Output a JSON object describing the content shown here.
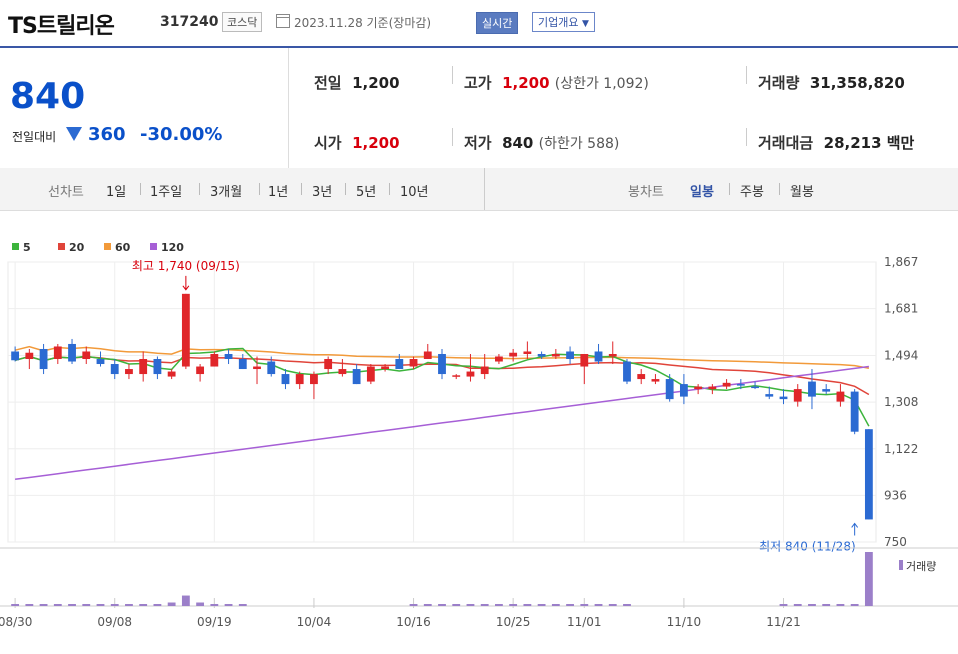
{
  "header": {
    "company": "TS트릴리온",
    "code": "317240",
    "market": "코스닥",
    "date": "2023.11.28  기준(장마감)",
    "realtime": "실시간",
    "company_info": "기업개요"
  },
  "price": {
    "current": "840",
    "change_label": "전일대비",
    "change": "360",
    "change_rate": "-30.00%"
  },
  "stats": {
    "prev_label": "전일",
    "prev": "1,200",
    "high_label": "고가",
    "high": "1,200",
    "upper_limit": "(상한가 1,092)",
    "volume_label": "거래량",
    "volume": "31,358,820",
    "open_label": "시가",
    "open": "1,200",
    "low_label": "저가",
    "low": "840",
    "lower_limit": "(하한가 588)",
    "amount_label": "거래대금",
    "amount": "28,213 백만"
  },
  "periods": {
    "line_title": "선차트",
    "line_items": [
      "1일",
      "1주일",
      "3개월",
      "1년",
      "3년",
      "5년",
      "10년"
    ],
    "candle_title": "봉차트",
    "candle_items": [
      "일봉",
      "주봉",
      "월봉"
    ],
    "candle_selected": "일봉"
  },
  "chart_data": {
    "type": "candlestick",
    "legend": [
      {
        "name": "5",
        "color": "#3cb43c"
      },
      {
        "name": "20",
        "color": "#e0443a"
      },
      {
        "name": "60",
        "color": "#f29a3a"
      },
      {
        "name": "120",
        "color": "#a65fd6"
      }
    ],
    "y_ticks": [
      "1,867",
      "1,681",
      "1,494",
      "1,308",
      "1,122",
      "936",
      "750"
    ],
    "y_tick_values": [
      1867,
      1681,
      1494,
      1308,
      1122,
      936,
      750
    ],
    "x_ticks": [
      "08/30",
      "09/08",
      "09/19",
      "10/04",
      "10/16",
      "10/25",
      "11/01",
      "11/10",
      "11/21"
    ],
    "x_tick_index": [
      0,
      7,
      14,
      21,
      28,
      35,
      40,
      47,
      54
    ],
    "ylim": [
      750,
      1867
    ],
    "annotation_high": "최고 1,740 (09/15)",
    "annotation_high_index": 12,
    "annotation_high_value": 1740,
    "annotation_low": "최저 840 (11/28)",
    "annotation_low_index": 59,
    "annotation_low_value": 840,
    "volume_label": "거래량",
    "candles": [
      {
        "o": 1510,
        "h": 1530,
        "l": 1470,
        "c": 1475
      },
      {
        "o": 1480,
        "h": 1520,
        "l": 1440,
        "c": 1505
      },
      {
        "o": 1520,
        "h": 1540,
        "l": 1420,
        "c": 1440
      },
      {
        "o": 1480,
        "h": 1540,
        "l": 1460,
        "c": 1530
      },
      {
        "o": 1540,
        "h": 1560,
        "l": 1460,
        "c": 1470
      },
      {
        "o": 1480,
        "h": 1530,
        "l": 1460,
        "c": 1510
      },
      {
        "o": 1480,
        "h": 1510,
        "l": 1450,
        "c": 1460
      },
      {
        "o": 1460,
        "h": 1480,
        "l": 1400,
        "c": 1420
      },
      {
        "o": 1420,
        "h": 1460,
        "l": 1400,
        "c": 1440
      },
      {
        "o": 1420,
        "h": 1510,
        "l": 1390,
        "c": 1480
      },
      {
        "o": 1480,
        "h": 1490,
        "l": 1400,
        "c": 1420
      },
      {
        "o": 1410,
        "h": 1440,
        "l": 1400,
        "c": 1430
      },
      {
        "o": 1450,
        "h": 1740,
        "l": 1440,
        "c": 1740
      },
      {
        "o": 1420,
        "h": 1460,
        "l": 1390,
        "c": 1450
      },
      {
        "o": 1450,
        "h": 1510,
        "l": 1450,
        "c": 1500
      },
      {
        "o": 1500,
        "h": 1520,
        "l": 1460,
        "c": 1480
      },
      {
        "o": 1480,
        "h": 1500,
        "l": 1440,
        "c": 1440
      },
      {
        "o": 1440,
        "h": 1490,
        "l": 1380,
        "c": 1450
      },
      {
        "o": 1470,
        "h": 1490,
        "l": 1410,
        "c": 1420
      },
      {
        "o": 1420,
        "h": 1440,
        "l": 1360,
        "c": 1380
      },
      {
        "o": 1380,
        "h": 1430,
        "l": 1360,
        "c": 1420
      },
      {
        "o": 1380,
        "h": 1430,
        "l": 1320,
        "c": 1420
      },
      {
        "o": 1440,
        "h": 1490,
        "l": 1420,
        "c": 1480
      },
      {
        "o": 1420,
        "h": 1480,
        "l": 1410,
        "c": 1440
      },
      {
        "o": 1440,
        "h": 1460,
        "l": 1380,
        "c": 1380
      },
      {
        "o": 1390,
        "h": 1460,
        "l": 1380,
        "c": 1450
      },
      {
        "o": 1440,
        "h": 1460,
        "l": 1430,
        "c": 1450
      },
      {
        "o": 1480,
        "h": 1500,
        "l": 1440,
        "c": 1440
      },
      {
        "o": 1450,
        "h": 1490,
        "l": 1440,
        "c": 1480
      },
      {
        "o": 1480,
        "h": 1540,
        "l": 1480,
        "c": 1510
      },
      {
        "o": 1500,
        "h": 1520,
        "l": 1400,
        "c": 1420
      },
      {
        "o": 1410,
        "h": 1420,
        "l": 1400,
        "c": 1415
      },
      {
        "o": 1410,
        "h": 1500,
        "l": 1390,
        "c": 1430
      },
      {
        "o": 1420,
        "h": 1500,
        "l": 1400,
        "c": 1450
      },
      {
        "o": 1470,
        "h": 1500,
        "l": 1460,
        "c": 1490
      },
      {
        "o": 1490,
        "h": 1520,
        "l": 1470,
        "c": 1505
      },
      {
        "o": 1500,
        "h": 1550,
        "l": 1480,
        "c": 1510
      },
      {
        "o": 1500,
        "h": 1510,
        "l": 1480,
        "c": 1490
      },
      {
        "o": 1490,
        "h": 1520,
        "l": 1480,
        "c": 1500
      },
      {
        "o": 1510,
        "h": 1530,
        "l": 1460,
        "c": 1480
      },
      {
        "o": 1450,
        "h": 1500,
        "l": 1380,
        "c": 1500
      },
      {
        "o": 1510,
        "h": 1540,
        "l": 1460,
        "c": 1470
      },
      {
        "o": 1490,
        "h": 1550,
        "l": 1460,
        "c": 1500
      },
      {
        "o": 1470,
        "h": 1480,
        "l": 1380,
        "c": 1390
      },
      {
        "o": 1400,
        "h": 1440,
        "l": 1380,
        "c": 1420
      },
      {
        "o": 1390,
        "h": 1420,
        "l": 1380,
        "c": 1400
      },
      {
        "o": 1400,
        "h": 1420,
        "l": 1310,
        "c": 1320
      },
      {
        "o": 1380,
        "h": 1420,
        "l": 1300,
        "c": 1330
      },
      {
        "o": 1360,
        "h": 1380,
        "l": 1340,
        "c": 1370
      },
      {
        "o": 1360,
        "h": 1380,
        "l": 1340,
        "c": 1370
      },
      {
        "o": 1370,
        "h": 1400,
        "l": 1360,
        "c": 1385
      },
      {
        "o": 1380,
        "h": 1400,
        "l": 1360,
        "c": 1375
      },
      {
        "o": 1370,
        "h": 1390,
        "l": 1360,
        "c": 1365
      },
      {
        "o": 1340,
        "h": 1370,
        "l": 1320,
        "c": 1330
      },
      {
        "o": 1330,
        "h": 1360,
        "l": 1300,
        "c": 1320
      },
      {
        "o": 1310,
        "h": 1380,
        "l": 1290,
        "c": 1360
      },
      {
        "o": 1390,
        "h": 1440,
        "l": 1280,
        "c": 1330
      },
      {
        "o": 1360,
        "h": 1380,
        "l": 1340,
        "c": 1350
      },
      {
        "o": 1310,
        "h": 1380,
        "l": 1290,
        "c": 1350
      },
      {
        "o": 1350,
        "h": 1360,
        "l": 1180,
        "c": 1190
      },
      {
        "o": 1200,
        "h": 1200,
        "l": 840,
        "c": 840
      }
    ],
    "volume": [
      1,
      1,
      1,
      1,
      1,
      1,
      1,
      1,
      1,
      1,
      1,
      2,
      6,
      2,
      1,
      1,
      1,
      0,
      0,
      0,
      0,
      0,
      0,
      0,
      0,
      0,
      0,
      0,
      1,
      1,
      1,
      1,
      1,
      1,
      1,
      1,
      1,
      1,
      1,
      1,
      1,
      1,
      1,
      1,
      0,
      0,
      0,
      0,
      0,
      0,
      0,
      0,
      0,
      0,
      1,
      1,
      1,
      1,
      1,
      1,
      31
    ]
  }
}
